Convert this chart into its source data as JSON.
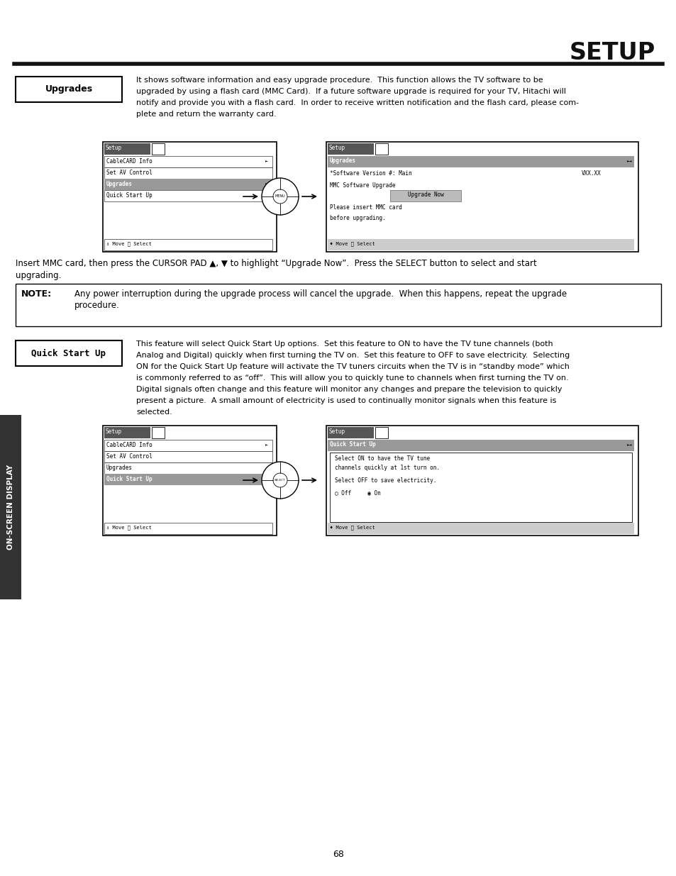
{
  "title": "SETUP",
  "bg_color": "#ffffff",
  "page_number": "68",
  "sidebar_text": "ON-SCREEN DISPLAY",
  "upgrades_label": "Upgrades",
  "upgrades_text_line1": "It shows software information and easy upgrade procedure.  This function allows the TV software to be",
  "upgrades_text_line2": "upgraded by using a flash card (MMC Card).  If a future software upgrade is required for your TV, Hitachi will",
  "upgrades_text_line3": "notify and provide you with a flash card.  In order to receive written notification and the flash card, please com-",
  "upgrades_text_line4": "plete and return the warranty card.",
  "insert_mmc_line1": "Insert MMC card, then press the CURSOR PAD ▲, ▼ to highlight “Upgrade Now”.  Press the SELECT button to select and start",
  "insert_mmc_line2": "upgrading.",
  "note_label": "NOTE:",
  "note_text_line1": "Any power interruption during the upgrade process will cancel the upgrade.  When this happens, repeat the upgrade",
  "note_text_line2": "procedure.",
  "quickstart_label": "Quick Start Up",
  "qs_text_line1": "This feature will select Quick Start Up options.  Set this feature to ON to have the TV tune channels (both",
  "qs_text_line2": "Analog and Digital) quickly when first turning the TV on.  Set this feature to OFF to save electricity.  Selecting",
  "qs_text_line3": "ON for the Quick Start Up feature will activate the TV tuners circuits when the TV is in “standby mode” which",
  "qs_text_line4": "is commonly referred to as “off”.  This will allow you to quickly tune to channels when first turning the TV on.",
  "qs_text_line5": "Digital signals often change and this feature will monitor any changes and prepare the television to quickly",
  "qs_text_line6": "present a picture.  A small amount of electricity is used to continually monitor signals when this feature is",
  "qs_text_line7": "selected.",
  "menu_items": [
    "CableCARD Info",
    "Set AV Control",
    "Upgrades",
    "Quick Start Up"
  ],
  "lm1_selected": "Upgrades",
  "lm2_selected": "Quick Start Up",
  "lm1_header": "Setup",
  "lm2_header": "Setup",
  "rm1_header": "Setup",
  "rm1_selected": "Upgrades",
  "rm1_line1": "*Software Version #: Main",
  "rm1_line1b": "VXX.XX",
  "rm1_line2": "MMC Software Upgrade",
  "rm1_btn": "Upgrade Now",
  "rm1_line3": "Please insert MMC card",
  "rm1_line4": "before upgrading.",
  "rm1_footer": "♦ Move Ⓞ Select",
  "rm2_header": "Setup",
  "rm2_selected": "Quick Start Up",
  "rm2_line1": "Select ON to have the TV tune",
  "rm2_line2": "channels quickly at 1st turn on.",
  "rm2_line3": "Select OFF to save electricity.",
  "rm2_line4": "○ Off     ◉ On",
  "rm2_footer": "♦ Move Ⓞ Select",
  "lm_footer": "↕ Move Ⓞ Select",
  "gray_dark": "#555555",
  "gray_mid": "#999999",
  "gray_light": "#cccccc",
  "gray_btn": "#bbbbbb"
}
